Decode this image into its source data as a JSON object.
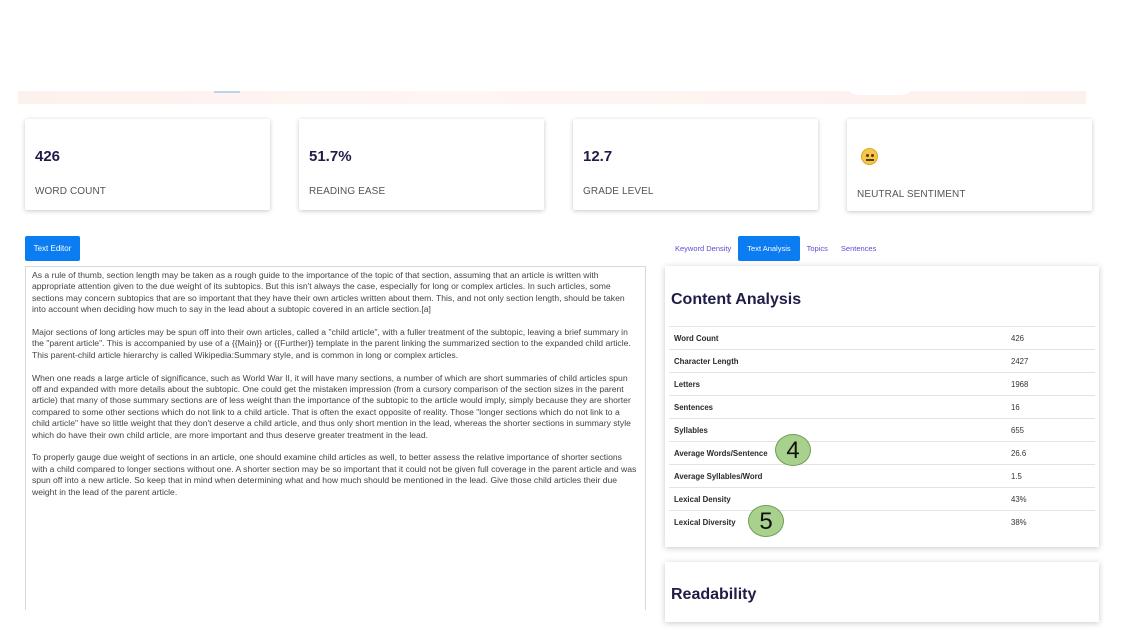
{
  "stats": [
    {
      "value": "426",
      "label": "WORD COUNT"
    },
    {
      "value": "51.7%",
      "label": "READING EASE"
    },
    {
      "value": "12.7",
      "label": "GRADE LEVEL"
    },
    {
      "value": "",
      "label": "NEUTRAL SENTIMENT",
      "icon": "neutral-face-icon"
    }
  ],
  "editor": {
    "button_label": "Text Editor",
    "paragraphs": [
      "As a rule of thumb, section length may be taken as a rough guide to the importance of the topic of that section, assuming that an article is written with appropriate attention given to the due weight of its subtopics. But this isn't always the case, especially for long or complex articles. In such articles, some sections may concern subtopics that are so important that they have their own articles written about them. This, and not only section length, should be taken into account when deciding how much to say in the lead about a subtopic covered in an article section.[a]",
      "Major sections of long articles may be spun off into their own articles, called a \"child article\", with a fuller treatment of the subtopic, leaving a brief summary in the \"parent article\". This is accompanied by use of a {{Main}} or {{Further}} template in the parent linking the summarized section to the expanded child article. This parent-child article hierarchy is called Wikipedia:Summary style, and is common in long or complex articles.",
      "When one reads a large article of significance, such as World War II, it will have many sections, a number of which are short summaries of child articles spun off and expanded with more details about the subtopic. One could get the mistaken impression (from a cursory comparison of the section sizes in the parent article) that many of those summary sections are of less weight than the importance of the subtopic to the article would imply, simply because they are shorter compared to some other sections which do not link to a child article. That is often the exact opposite of reality. Those \"longer sections which do not link to a child article\" have so little weight that they don't deserve a child article, and thus only short mention in the lead, whereas the shorter sections in summary style which do have their own child article, are more important and thus deserve greater treatment in the lead.",
      "To properly gauge due weight of sections in an article, one should examine child articles as well, to better assess the relative importance of shorter sections with a child compared to longer sections without one. A shorter section may be so important that it could not be given full coverage in the parent article and was spun off into a new article. So keep that in mind when determining what and how much should be mentioned in the lead. Give those child articles their due weight in the lead of the parent article."
    ]
  },
  "tabs": [
    {
      "label": "Keyword Density",
      "active": false
    },
    {
      "label": "Text Analysis",
      "active": true
    },
    {
      "label": "Topics",
      "active": false
    },
    {
      "label": "Sentences",
      "active": false
    }
  ],
  "content_analysis": {
    "title": "Content Analysis",
    "rows": [
      {
        "key": "Word Count",
        "value": "426"
      },
      {
        "key": "Character Length",
        "value": "2427"
      },
      {
        "key": "Letters",
        "value": "1968"
      },
      {
        "key": "Sentences",
        "value": "16"
      },
      {
        "key": "Syllables",
        "value": "655"
      },
      {
        "key": "Average Words/Sentence",
        "value": "26.6"
      },
      {
        "key": "Average Syllables/Word",
        "value": "1.5"
      },
      {
        "key": "Lexical Density",
        "value": "43%"
      },
      {
        "key": "Lexical Diversity",
        "value": "38%"
      }
    ]
  },
  "readability": {
    "title": "Readability"
  },
  "markers": [
    "4",
    "5"
  ]
}
